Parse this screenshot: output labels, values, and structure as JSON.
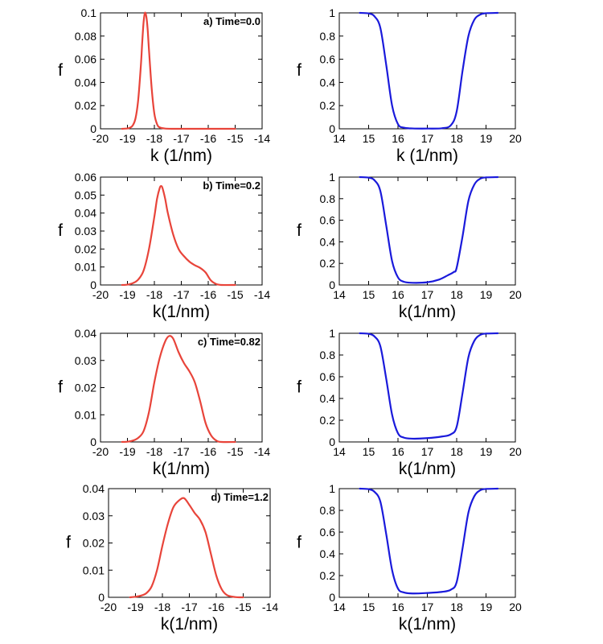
{
  "colors": {
    "left_curve": "#e8443a",
    "right_curve": "#1a1adb",
    "axis": "#000000"
  },
  "chart_data": [
    {
      "id": "a-left",
      "type": "line",
      "annotation": "a) Time=0.0",
      "xlabel": "k (1/nm)",
      "ylabel": "f",
      "xlim": [
        -20,
        -14
      ],
      "ylim": [
        0,
        0.1
      ],
      "xticks": [
        -20,
        -19,
        -18,
        -17,
        -16,
        -15,
        -14
      ],
      "yticks": [
        0,
        0.02,
        0.04,
        0.06,
        0.08,
        0.1
      ],
      "xtick_labels": [
        "-20",
        "-19",
        "-18",
        "-17",
        "-16",
        "-15",
        "-14"
      ],
      "ytick_labels": [
        "0",
        "0.02",
        "0.04",
        "0.06",
        "0.08",
        "0.1"
      ],
      "series": [
        {
          "name": "f(k)",
          "color": "#e8443a",
          "x": [
            -19.2,
            -19.0,
            -18.9,
            -18.8,
            -18.7,
            -18.6,
            -18.5,
            -18.45,
            -18.4,
            -18.35,
            -18.3,
            -18.25,
            -18.2,
            -18.1,
            -18.0,
            -17.9,
            -17.8,
            -17.6,
            -17.3,
            -17.0,
            -16.5,
            -16.0,
            -15.5,
            -15.0
          ],
          "y": [
            0,
            0.0003,
            0.001,
            0.003,
            0.009,
            0.025,
            0.055,
            0.075,
            0.092,
            0.1,
            0.097,
            0.086,
            0.068,
            0.035,
            0.013,
            0.004,
            0.0012,
            0.0002,
            0,
            0,
            0,
            0,
            0,
            0
          ]
        }
      ]
    },
    {
      "id": "a-right",
      "type": "line",
      "annotation": "",
      "xlabel": "k (1/nm)",
      "ylabel": "f",
      "xlim": [
        14,
        20
      ],
      "ylim": [
        0,
        1
      ],
      "xticks": [
        14,
        15,
        16,
        17,
        18,
        19,
        20
      ],
      "yticks": [
        0,
        0.2,
        0.4,
        0.6,
        0.8,
        1
      ],
      "xtick_labels": [
        "14",
        "15",
        "16",
        "17",
        "18",
        "19",
        "20"
      ],
      "ytick_labels": [
        "0",
        "0.2",
        "0.4",
        "0.6",
        "0.8",
        "1"
      ],
      "series": [
        {
          "name": "f(k)",
          "color": "#1a1adb",
          "x": [
            14.7,
            15.0,
            15.2,
            15.4,
            15.6,
            15.8,
            16.0,
            16.2,
            16.5,
            17.0,
            17.5,
            17.8,
            18.0,
            18.2,
            18.4,
            18.6,
            18.8,
            19.0,
            19.4
          ],
          "y": [
            1,
            0.995,
            0.97,
            0.87,
            0.55,
            0.2,
            0.04,
            0.01,
            0.003,
            0.002,
            0.005,
            0.03,
            0.15,
            0.5,
            0.8,
            0.94,
            0.985,
            0.997,
            1
          ]
        }
      ]
    },
    {
      "id": "b-left",
      "type": "line",
      "annotation": "b) Time=0.2",
      "xlabel": "k(1/nm)",
      "ylabel": "f",
      "xlim": [
        -20,
        -14
      ],
      "ylim": [
        0,
        0.06
      ],
      "xticks": [
        -20,
        -19,
        -18,
        -17,
        -16,
        -15,
        -14
      ],
      "yticks": [
        0,
        0.01,
        0.02,
        0.03,
        0.04,
        0.05,
        0.06
      ],
      "xtick_labels": [
        "-20",
        "-19",
        "-18",
        "-17",
        "-16",
        "-15",
        "-14"
      ],
      "ytick_labels": [
        "0",
        "0.01",
        "0.02",
        "0.03",
        "0.04",
        "0.05",
        "0.06"
      ],
      "series": [
        {
          "name": "f(k)",
          "color": "#e8443a",
          "x": [
            -19.2,
            -19.0,
            -18.8,
            -18.6,
            -18.4,
            -18.2,
            -18.0,
            -17.9,
            -17.8,
            -17.75,
            -17.7,
            -17.6,
            -17.5,
            -17.3,
            -17.1,
            -16.9,
            -16.7,
            -16.5,
            -16.3,
            -16.1,
            -15.9,
            -15.7,
            -15.5,
            -15.0
          ],
          "y": [
            0,
            0.0002,
            0.001,
            0.003,
            0.008,
            0.02,
            0.038,
            0.048,
            0.054,
            0.055,
            0.054,
            0.048,
            0.04,
            0.028,
            0.02,
            0.016,
            0.013,
            0.011,
            0.0095,
            0.007,
            0.0025,
            0.0005,
            0,
            0
          ]
        }
      ]
    },
    {
      "id": "b-right",
      "type": "line",
      "annotation": "",
      "xlabel": "k(1/nm)",
      "ylabel": "f",
      "xlim": [
        14,
        20
      ],
      "ylim": [
        0,
        1
      ],
      "xticks": [
        14,
        15,
        16,
        17,
        18,
        19,
        20
      ],
      "yticks": [
        0,
        0.2,
        0.4,
        0.6,
        0.8,
        1
      ],
      "xtick_labels": [
        "14",
        "15",
        "16",
        "17",
        "18",
        "19",
        "20"
      ],
      "ytick_labels": [
        "0",
        "0.2",
        "0.4",
        "0.6",
        "0.8",
        "1"
      ],
      "series": [
        {
          "name": "f(k)",
          "color": "#1a1adb",
          "x": [
            14.7,
            15.0,
            15.2,
            15.4,
            15.6,
            15.8,
            16.0,
            16.2,
            16.5,
            17.0,
            17.4,
            17.7,
            17.9,
            18.0,
            18.2,
            18.4,
            18.6,
            18.8,
            19.0,
            19.4
          ],
          "y": [
            1,
            0.995,
            0.97,
            0.87,
            0.55,
            0.22,
            0.07,
            0.03,
            0.02,
            0.025,
            0.05,
            0.09,
            0.12,
            0.16,
            0.45,
            0.78,
            0.93,
            0.985,
            0.997,
            1
          ]
        }
      ]
    },
    {
      "id": "c-left",
      "type": "line",
      "annotation": "c) Time=0.82",
      "xlabel": "k(1/nm)",
      "ylabel": "f",
      "xlim": [
        -20,
        -14
      ],
      "ylim": [
        0,
        0.04
      ],
      "xticks": [
        -20,
        -19,
        -18,
        -17,
        -16,
        -15,
        -14
      ],
      "yticks": [
        0,
        0.01,
        0.02,
        0.03,
        0.04
      ],
      "xtick_labels": [
        "-20",
        "-19",
        "-18",
        "-17",
        "-16",
        "-15",
        "-14"
      ],
      "ytick_labels": [
        "0",
        "0.01",
        "0.02",
        "0.03",
        "0.04"
      ],
      "series": [
        {
          "name": "f(k)",
          "color": "#e8443a",
          "x": [
            -19.2,
            -19.0,
            -18.8,
            -18.6,
            -18.4,
            -18.2,
            -18.0,
            -17.8,
            -17.6,
            -17.45,
            -17.3,
            -17.1,
            -16.9,
            -16.7,
            -16.5,
            -16.3,
            -16.1,
            -15.9,
            -15.7,
            -15.5,
            -15.0
          ],
          "y": [
            0,
            0.0001,
            0.0005,
            0.0015,
            0.004,
            0.011,
            0.022,
            0.031,
            0.037,
            0.039,
            0.038,
            0.033,
            0.029,
            0.026,
            0.022,
            0.015,
            0.007,
            0.0025,
            0.0005,
            0,
            0
          ]
        }
      ]
    },
    {
      "id": "c-right",
      "type": "line",
      "annotation": "",
      "xlabel": "k(1/nm)",
      "ylabel": "f",
      "xlim": [
        14,
        20
      ],
      "ylim": [
        0,
        1
      ],
      "xticks": [
        14,
        15,
        16,
        17,
        18,
        19,
        20
      ],
      "yticks": [
        0,
        0.2,
        0.4,
        0.6,
        0.8,
        1
      ],
      "xtick_labels": [
        "14",
        "15",
        "16",
        "17",
        "18",
        "19",
        "20"
      ],
      "ytick_labels": [
        "0",
        "0.2",
        "0.4",
        "0.6",
        "0.8",
        "1"
      ],
      "series": [
        {
          "name": "f(k)",
          "color": "#1a1adb",
          "x": [
            14.7,
            15.0,
            15.2,
            15.4,
            15.6,
            15.8,
            16.0,
            16.2,
            16.5,
            17.0,
            17.5,
            17.8,
            18.0,
            18.2,
            18.4,
            18.6,
            18.8,
            19.0,
            19.4
          ],
          "y": [
            1,
            0.995,
            0.97,
            0.88,
            0.58,
            0.25,
            0.08,
            0.04,
            0.03,
            0.035,
            0.05,
            0.07,
            0.14,
            0.45,
            0.78,
            0.93,
            0.985,
            0.997,
            1
          ]
        }
      ]
    },
    {
      "id": "d-left",
      "type": "line",
      "annotation": "d) Time=1.2",
      "xlabel": "k(1/nm)",
      "ylabel": "f",
      "xlim": [
        -20,
        -14
      ],
      "ylim": [
        0,
        0.04
      ],
      "xticks": [
        -20,
        -19,
        -18,
        -17,
        -16,
        -15,
        -14
      ],
      "yticks": [
        0,
        0.01,
        0.02,
        0.03,
        0.04
      ],
      "xtick_labels": [
        "-20",
        "-19",
        "-18",
        "-17",
        "-16",
        "-15",
        "-14"
      ],
      "ytick_labels": [
        "0",
        "0.01",
        "0.02",
        "0.03",
        "0.04"
      ],
      "series": [
        {
          "name": "f(k)",
          "color": "#e8443a",
          "x": [
            -19.2,
            -19.0,
            -18.8,
            -18.6,
            -18.4,
            -18.2,
            -18.0,
            -17.8,
            -17.6,
            -17.4,
            -17.2,
            -17.0,
            -16.8,
            -16.6,
            -16.4,
            -16.2,
            -16.0,
            -15.8,
            -15.6,
            -15.3,
            -15.0
          ],
          "y": [
            0,
            0.0002,
            0.0006,
            0.0015,
            0.004,
            0.01,
            0.019,
            0.027,
            0.033,
            0.0355,
            0.0365,
            0.034,
            0.031,
            0.0285,
            0.024,
            0.016,
            0.008,
            0.003,
            0.0008,
            0.0001,
            0
          ]
        }
      ]
    },
    {
      "id": "d-right",
      "type": "line",
      "annotation": "",
      "xlabel": "k(1/nm)",
      "ylabel": "f",
      "xlim": [
        14,
        20
      ],
      "ylim": [
        0,
        1
      ],
      "xticks": [
        14,
        15,
        16,
        17,
        18,
        19,
        20
      ],
      "yticks": [
        0,
        0.2,
        0.4,
        0.6,
        0.8,
        1
      ],
      "xtick_labels": [
        "14",
        "15",
        "16",
        "17",
        "18",
        "19",
        "20"
      ],
      "ytick_labels": [
        "0",
        "0.2",
        "0.4",
        "0.6",
        "0.8",
        "1"
      ],
      "series": [
        {
          "name": "f(k)",
          "color": "#1a1adb",
          "x": [
            14.7,
            15.0,
            15.2,
            15.4,
            15.6,
            15.8,
            16.0,
            16.2,
            16.5,
            17.0,
            17.5,
            17.8,
            18.0,
            18.2,
            18.4,
            18.6,
            18.8,
            19.0,
            19.4
          ],
          "y": [
            1,
            0.995,
            0.97,
            0.88,
            0.58,
            0.25,
            0.08,
            0.045,
            0.035,
            0.04,
            0.05,
            0.07,
            0.14,
            0.45,
            0.78,
            0.93,
            0.985,
            0.997,
            1
          ]
        }
      ]
    }
  ]
}
